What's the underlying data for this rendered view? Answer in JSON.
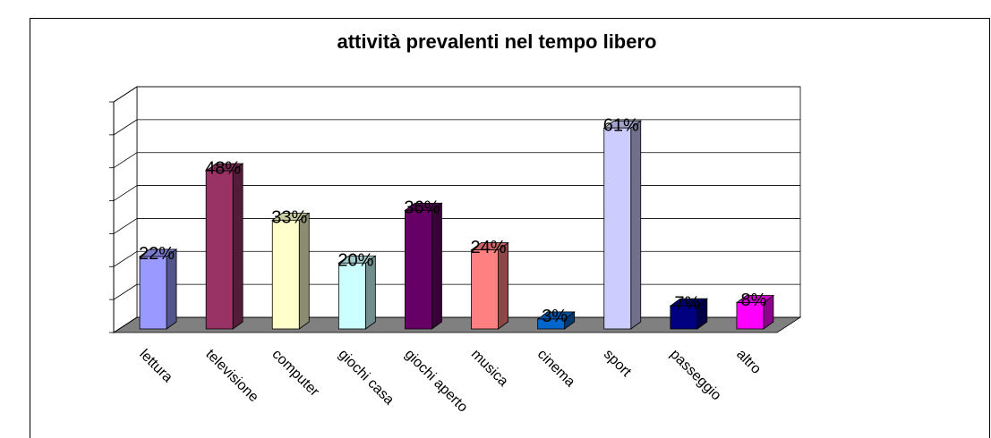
{
  "chart_data": {
    "type": "bar3d",
    "title": "attività prevalenti nel tempo libero",
    "categories": [
      "lettura",
      "televisione",
      "computer",
      "giochi casa",
      "giochi aperto",
      "musica",
      "cinema",
      "sport",
      "passeggio",
      "altro"
    ],
    "values": [
      22,
      48,
      33,
      20,
      36,
      24,
      3,
      61,
      7,
      8
    ],
    "value_labels": [
      "22%",
      "48%",
      "33%",
      "20%",
      "36%",
      "24%",
      "3%",
      "61%",
      "7%",
      "8%"
    ],
    "colors": [
      "#9999ff",
      "#993366",
      "#ffffcc",
      "#ccffff",
      "#660066",
      "#ff8080",
      "#0066cc",
      "#ccccff",
      "#000080",
      "#ff00ff"
    ],
    "ylim": [
      0,
      70
    ],
    "yticks": [
      0,
      10,
      20,
      30,
      40,
      50,
      60,
      70
    ],
    "grid": true
  }
}
